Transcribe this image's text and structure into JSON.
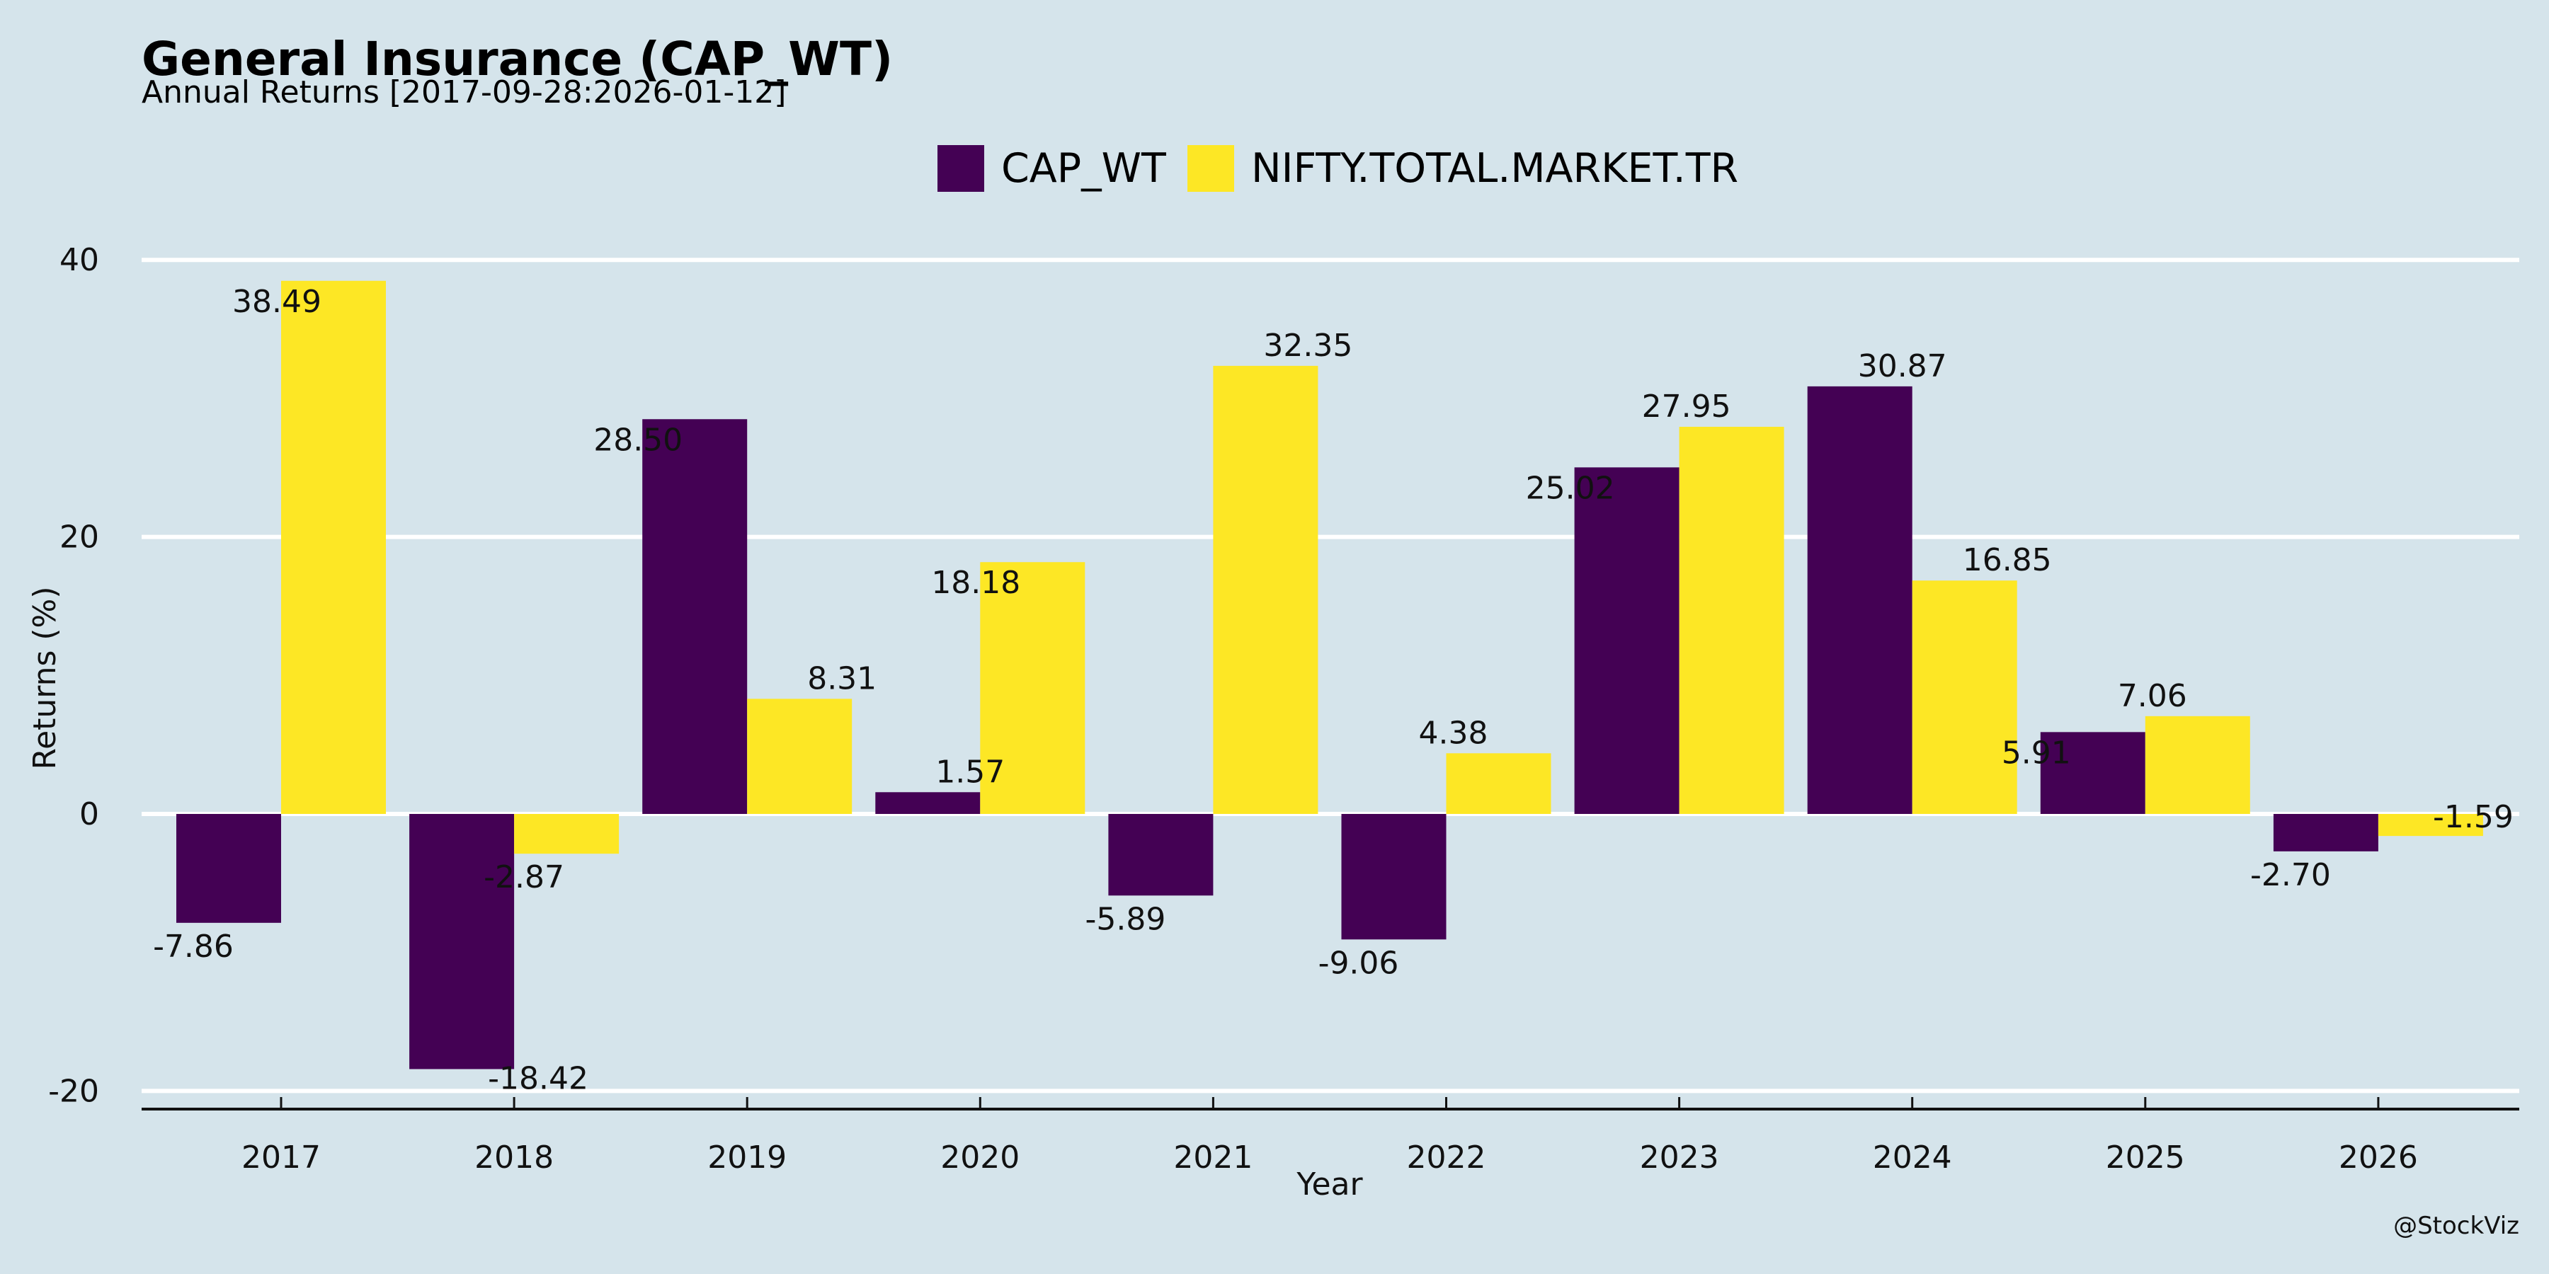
{
  "chart_data": {
    "type": "bar",
    "title": "General Insurance (CAP_WT)",
    "subtitle": "Annual Returns [2017-09-28:2026-01-12]",
    "xlabel": "Year",
    "ylabel": "Returns (%)",
    "categories": [
      "2017",
      "2018",
      "2019",
      "2020",
      "2021",
      "2022",
      "2023",
      "2024",
      "2025",
      "2026"
    ],
    "series": [
      {
        "name": "CAP_WT",
        "color": "#440154",
        "values": [
          -7.86,
          -18.42,
          28.5,
          1.57,
          -5.89,
          -9.06,
          25.02,
          30.87,
          5.91,
          -2.7
        ],
        "labels": [
          "-7.86",
          "-18.42",
          "28.50",
          "1.57",
          "-5.89",
          "-9.06",
          "25.02",
          "30.87",
          "5.91",
          "-2.70"
        ]
      },
      {
        "name": "NIFTY.TOTAL.MARKET.TR",
        "color": "#fde725",
        "values": [
          38.49,
          -2.87,
          8.31,
          18.18,
          32.35,
          4.38,
          27.95,
          16.85,
          7.06,
          -1.59
        ],
        "labels": [
          "38.49",
          "-2.87",
          "8.31",
          "18.18",
          "32.35",
          "4.38",
          "27.95",
          "16.85",
          "7.06",
          "-1.59"
        ]
      }
    ],
    "yticks": [
      -20,
      0,
      20,
      40
    ],
    "ytick_labels": [
      "-20",
      "0",
      "20",
      "40"
    ],
    "ylim": [
      -21.2,
      41.5
    ],
    "grid": true,
    "legend_position": "top-center",
    "credit": "@StockViz"
  }
}
